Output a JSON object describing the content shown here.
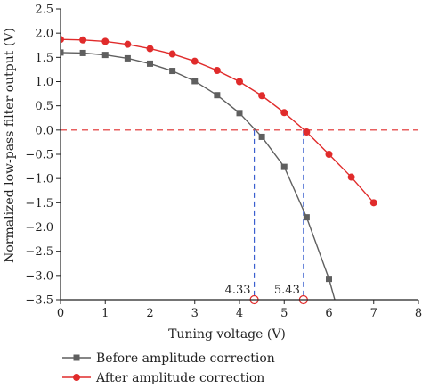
{
  "chart_data": {
    "type": "line",
    "title": "",
    "xlabel": "Tuning voltage (V)",
    "ylabel": "Normalized low-pass filter output (V)",
    "xlim": [
      0,
      8
    ],
    "ylim": [
      -3.5,
      2.5
    ],
    "xticks": [
      0,
      1,
      2,
      3,
      4,
      5,
      6,
      7,
      8
    ],
    "yticks": [
      2.5,
      2.0,
      1.5,
      1.0,
      0.5,
      0.0,
      -0.5,
      -1.0,
      -1.5,
      -2.0,
      -2.5,
      -3.0,
      -3.5
    ],
    "xtick_labels": [
      "0",
      "1",
      "2",
      "3",
      "4",
      "5",
      "6",
      "7",
      "8"
    ],
    "ytick_labels": [
      "2.5",
      "2.0",
      "1.5",
      "1.0",
      "0.5",
      "0.0",
      "−0.5",
      "−1.0",
      "−1.5",
      "−2.0",
      "−2.5",
      "−3.0",
      "−3.5"
    ],
    "grid": false,
    "legend_position": "bottom",
    "series": [
      {
        "name": "Before amplitude correction",
        "color": "#5f5f5f",
        "marker": "square",
        "x": [
          0,
          0.5,
          1.0,
          1.5,
          2.0,
          2.5,
          3.0,
          3.5,
          4.0,
          4.5,
          5.0,
          5.5,
          6.0,
          6.13
        ],
        "y": [
          1.6,
          1.59,
          1.55,
          1.48,
          1.37,
          1.22,
          1.01,
          0.72,
          0.35,
          -0.14,
          -0.76,
          -1.8,
          -3.07,
          -3.5
        ],
        "marker_count": 13
      },
      {
        "name": "After amplitude correction",
        "color": "#e02b2b",
        "marker": "circle",
        "x": [
          0,
          0.5,
          1.0,
          1.5,
          2.0,
          2.5,
          3.0,
          3.5,
          4.0,
          4.5,
          5.0,
          5.5,
          6.0,
          6.5,
          7.0
        ],
        "y": [
          1.87,
          1.86,
          1.83,
          1.77,
          1.68,
          1.57,
          1.42,
          1.23,
          1.0,
          0.71,
          0.36,
          -0.04,
          -0.5,
          -0.97,
          -1.5
        ],
        "marker_count": 15
      }
    ],
    "reference_line": {
      "y": 0.0,
      "color": "#e02b2b",
      "style": "dashed"
    },
    "annotations": [
      {
        "x": 4.33,
        "label": "4.33",
        "color": "#3a5fcf",
        "style": "dashed"
      },
      {
        "x": 5.43,
        "label": "5.43",
        "color": "#3a5fcf",
        "style": "dashed"
      }
    ]
  }
}
